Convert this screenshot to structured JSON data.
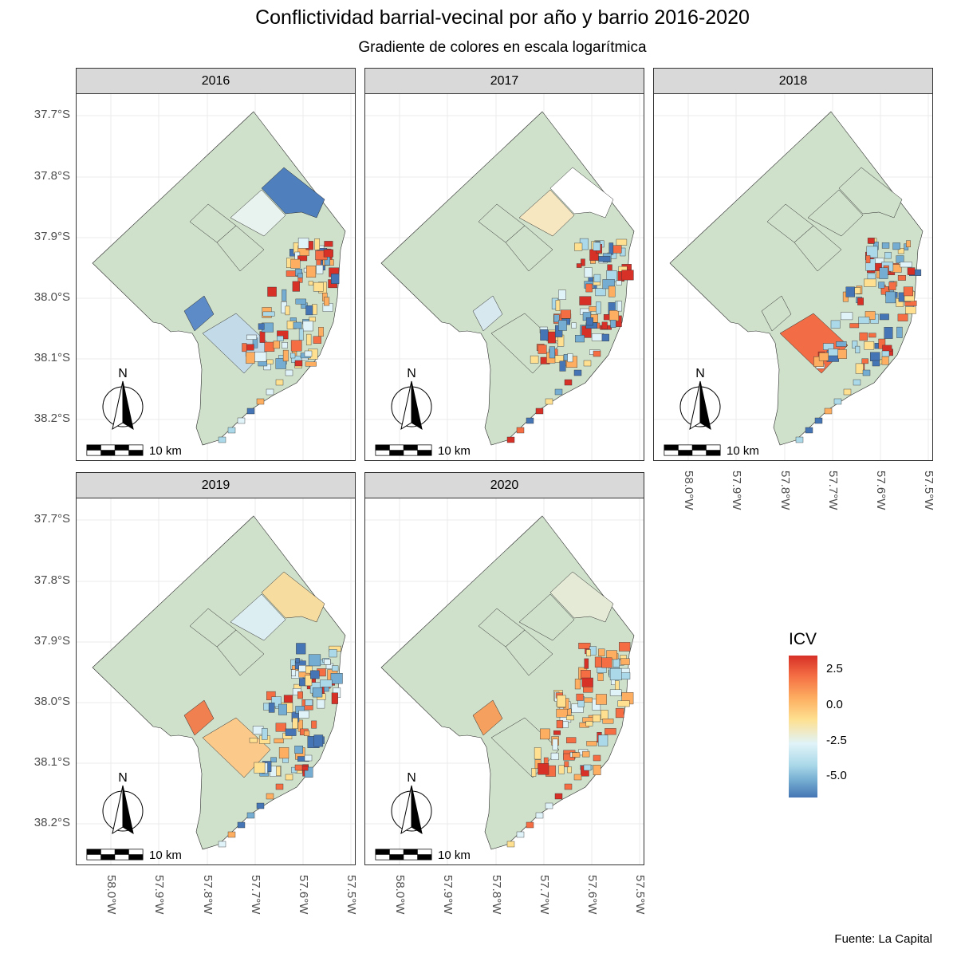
{
  "title": "Conflictividad barrial-vecinal por año y barrio 2016-2020",
  "subtitle": "Gradiente de colores en escala logarítmica",
  "caption": "Fuente: La Capital",
  "facets": [
    "2016",
    "2017",
    "2018",
    "2019",
    "2020"
  ],
  "y_ticks": [
    "37.7°S",
    "37.8°S",
    "37.9°S",
    "38.0°S",
    "38.1°S",
    "38.2°S"
  ],
  "x_ticks": [
    "58.0°W",
    "57.9°W",
    "57.8°W",
    "57.7°W",
    "57.6°W",
    "57.5°W"
  ],
  "north_label": "N",
  "scale_label": "10 km",
  "legend": {
    "title": "ICV",
    "labels": [
      "2.5",
      "0.0",
      "-2.5",
      "-5.0"
    ],
    "colors": [
      "#d73027",
      "#f46d43",
      "#fdae61",
      "#fee090",
      "#e0f3f8",
      "#abd9e9",
      "#74add1",
      "#4575b4"
    ]
  },
  "base_color": "#cfe0cb",
  "panel_fills": [
    {
      "mid": "#4f7fbd",
      "west": "#5d8bc7",
      "southwest": "#c3dbe8",
      "northeast": "#e8f2ee",
      "coast": [
        "#d73027",
        "#f46d43",
        "#fdae61",
        "#fee090",
        "#abd9e9",
        "#74add1",
        "#4575b4",
        "#e0f3f8"
      ]
    },
    {
      "mid": "#ffffff",
      "west": "#d7e8ef",
      "southwest": "#cfe0cb",
      "northeast": "#f6e7c1",
      "coast": [
        "#d73027",
        "#f46d43",
        "#fdae61",
        "#fee090",
        "#abd9e9",
        "#74add1",
        "#4575b4",
        "#e0f3f8"
      ]
    },
    {
      "mid": "#cfe0cb",
      "west": "#cfe0cb",
      "southwest": "#f26d45",
      "northeast": "#cfe0cb",
      "coast": [
        "#d73027",
        "#f46d43",
        "#fdae61",
        "#fee090",
        "#abd9e9",
        "#74add1",
        "#4575b4",
        "#e0f3f8"
      ]
    },
    {
      "mid": "#f7dca0",
      "west": "#f08050",
      "southwest": "#fbc98a",
      "northeast": "#ddeef2",
      "coast": [
        "#d73027",
        "#f46d43",
        "#fdae61",
        "#fee090",
        "#abd9e9",
        "#74add1",
        "#4575b4",
        "#e0f3f8"
      ]
    },
    {
      "mid": "#e5ead7",
      "west": "#f5a05e",
      "southwest": "#cfe0cb",
      "northeast": "#cfe0cb",
      "coast": [
        "#d73027",
        "#f46d43",
        "#fdae61",
        "#fee090",
        "#abd9e9",
        "#f46d43",
        "#fdae61",
        "#e0f3f8"
      ]
    }
  ]
}
